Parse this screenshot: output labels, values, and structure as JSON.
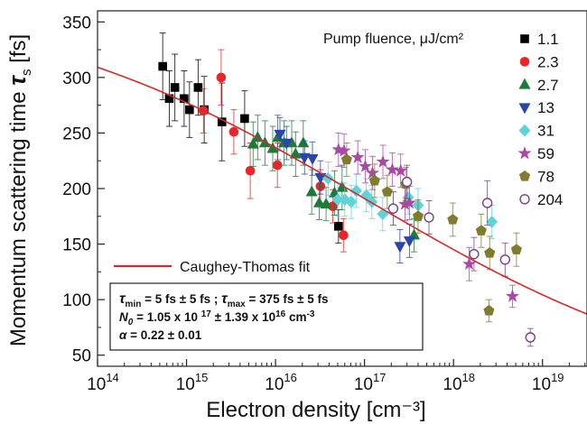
{
  "chart_data": {
    "type": "scatter",
    "xlabel": "Electron density [cm⁻³]",
    "ylabel_prefix": "Momentum scattering time ",
    "ylabel_symbol": "τ",
    "ylabel_subscript": "s",
    "ylabel_unit": " [fs]",
    "x_scale": "log",
    "xlim_exp": [
      14,
      19.5
    ],
    "x_ticks": [
      {
        "exp": 14,
        "base": "10",
        "sup": "14"
      },
      {
        "exp": 15,
        "base": "10",
        "sup": "15"
      },
      {
        "exp": 16,
        "base": "10",
        "sup": "16"
      },
      {
        "exp": 17,
        "base": "10",
        "sup": "17"
      },
      {
        "exp": 18,
        "base": "10",
        "sup": "18"
      },
      {
        "exp": 19,
        "base": "10",
        "sup": "19"
      }
    ],
    "ylim": [
      40,
      360
    ],
    "y_ticks": [
      "50",
      "100",
      "150",
      "200",
      "250",
      "300",
      "350"
    ],
    "grid": false,
    "legend_title": "Pump fluence, μJ/cm²",
    "legend_position": "top-right",
    "series": [
      {
        "name": "1.1",
        "color": "#000000",
        "marker": "square",
        "filled": true,
        "points": [
          [
            540000000000000.0,
            310,
            30
          ],
          [
            640000000000000.0,
            281,
            25
          ],
          [
            740000000000000.0,
            291,
            30
          ],
          [
            940000000000000.0,
            281,
            25
          ],
          [
            1080000000000000.0,
            271,
            25
          ],
          [
            1350000000000000.0,
            291,
            25
          ],
          [
            1580000000000000.0,
            271,
            30
          ],
          [
            2500000000000000.0,
            260,
            35
          ],
          [
            4500000000000000.0,
            263,
            25
          ],
          [
            5.1e+16,
            166,
            15
          ]
        ]
      },
      {
        "name": "2.3",
        "color": "#e8262a",
        "marker": "circle",
        "filled": true,
        "points": [
          [
            1550000000000000.0,
            270,
            20
          ],
          [
            2450000000000000.0,
            300,
            25
          ],
          [
            3400000000000000.0,
            251,
            20
          ],
          [
            5200000000000000.0,
            216,
            25
          ],
          [
            1.05e+16,
            221,
            20
          ],
          [
            3.2e+16,
            202,
            15
          ],
          [
            4.4e+16,
            184,
            15
          ],
          [
            5.8e+16,
            158,
            15
          ]
        ]
      },
      {
        "name": "2.7",
        "color": "#1e7a3a",
        "marker": "triangle-up",
        "filled": true,
        "points": [
          [
            5600000000000000.0,
            240,
            20
          ],
          [
            6300000000000000.0,
            246,
            20
          ],
          [
            7600000000000000.0,
            241,
            20
          ],
          [
            9300000000000000.0,
            236,
            20
          ],
          [
            1.06e+16,
            246,
            20
          ],
          [
            1.25e+16,
            241,
            20
          ],
          [
            1.52e+16,
            241,
            20
          ],
          [
            1.68e+16,
            231,
            20
          ],
          [
            2.05e+16,
            241,
            20
          ],
          [
            2.55e+16,
            197,
            20
          ],
          [
            3.1e+16,
            187,
            15
          ],
          [
            3.7e+16,
            186,
            15
          ],
          [
            4.6e+16,
            196,
            20
          ],
          [
            5.6e+16,
            201,
            20
          ],
          [
            3.6e+17,
            158,
            15
          ]
        ]
      },
      {
        "name": "13",
        "color": "#2a46a8",
        "marker": "triangle-down",
        "filled": true,
        "points": [
          [
            1.12e+16,
            249,
            15
          ],
          [
            1.33e+16,
            241,
            15
          ],
          [
            2.12e+16,
            228,
            15
          ],
          [
            2.6e+16,
            227,
            15
          ],
          [
            3.2e+16,
            210,
            15
          ],
          [
            2.5e+17,
            148,
            15
          ],
          [
            3.2e+17,
            153,
            15
          ]
        ]
      },
      {
        "name": "31",
        "color": "#5fd3d8",
        "marker": "diamond",
        "filled": true,
        "points": [
          [
            3.9e+16,
            209,
            15
          ],
          [
            5e+16,
            190,
            15
          ],
          [
            6e+16,
            190,
            15
          ],
          [
            7.1e+16,
            188,
            15
          ],
          [
            8.1e+16,
            198,
            15
          ],
          [
            1.05e+17,
            194,
            15
          ],
          [
            1.21e+17,
            188,
            15
          ],
          [
            1.6e+17,
            177,
            15
          ],
          [
            2.1e+17,
            182,
            15
          ],
          [
            3.1e+17,
            192,
            15
          ],
          [
            4e+17,
            185,
            15
          ],
          [
            2.7e+18,
            170,
            15
          ]
        ]
      },
      {
        "name": "59",
        "color": "#a84aa5",
        "marker": "star",
        "filled": true,
        "points": [
          [
            5.1e+16,
            235,
            15
          ],
          [
            5.9e+16,
            234,
            15
          ],
          [
            8.4e+16,
            228,
            15
          ],
          [
            1.02e+17,
            220,
            15
          ],
          [
            1.23e+17,
            214,
            15
          ],
          [
            1.61e+17,
            224,
            15
          ],
          [
            2.05e+17,
            217,
            15
          ],
          [
            2.55e+17,
            216,
            15
          ],
          [
            2.85e+17,
            186,
            15
          ],
          [
            3.2e+17,
            187,
            15
          ],
          [
            1.5e+18,
            132,
            15
          ],
          [
            4.6e+18,
            103,
            10
          ]
        ]
      },
      {
        "name": "78",
        "color": "#7f7c2c",
        "marker": "pentagon",
        "filled": true,
        "points": [
          [
            6.3e+16,
            226,
            15
          ],
          [
            1.3e+17,
            207,
            15
          ],
          [
            1.8e+17,
            197,
            15
          ],
          [
            2.9e+17,
            204,
            15
          ],
          [
            4e+17,
            175,
            15
          ],
          [
            9.8e+17,
            172,
            15
          ],
          [
            2.05e+18,
            162,
            15
          ],
          [
            2.55e+18,
            142,
            15
          ],
          [
            5.1e+18,
            145,
            15
          ],
          [
            2.5e+18,
            90,
            10
          ]
        ]
      },
      {
        "name": "204",
        "color": "#7b3f8c",
        "marker": "circle",
        "filled": false,
        "points": [
          [
            2.1e+17,
            182,
            15
          ],
          [
            3e+17,
            206,
            15
          ],
          [
            5.3e+17,
            174,
            15
          ],
          [
            1.7e+18,
            141,
            15
          ],
          [
            2.4e+18,
            187,
            20
          ],
          [
            3.8e+18,
            136,
            15
          ],
          [
            7.3e+18,
            66,
            8
          ]
        ]
      }
    ],
    "fit": {
      "name": "Caughey-Thomas fit",
      "color": "#d42a2a",
      "tau_min": 5,
      "tau_max": 375,
      "N0": 1.05e+17,
      "alpha": 0.22
    },
    "annotation_lines": [
      {
        "parts": [
          {
            "text": "τ",
            "style": "it"
          },
          {
            "text": "min",
            "style": "sub"
          },
          {
            "text": " = 5 fs ± 5 fs ;    ",
            "style": ""
          },
          {
            "text": "τ",
            "style": "it"
          },
          {
            "text": "max",
            "style": "sub"
          },
          {
            "text": " = 375 fs ± 5 fs",
            "style": ""
          }
        ]
      },
      {
        "parts": [
          {
            "text": "N",
            "style": "it"
          },
          {
            "text": "0",
            "style": "sub-it"
          },
          {
            "text": " = 1.05 x 10 ",
            "style": ""
          },
          {
            "text": "17",
            "style": "sup"
          },
          {
            "text": " ± 1.39 x 10",
            "style": ""
          },
          {
            "text": "16",
            "style": "sup"
          },
          {
            "text": " cm",
            "style": ""
          },
          {
            "text": "-3",
            "style": "sup"
          }
        ]
      },
      {
        "parts": [
          {
            "text": "α",
            "style": "it"
          },
          {
            "text": " = 0.22 ± 0.01",
            "style": ""
          }
        ]
      }
    ]
  }
}
